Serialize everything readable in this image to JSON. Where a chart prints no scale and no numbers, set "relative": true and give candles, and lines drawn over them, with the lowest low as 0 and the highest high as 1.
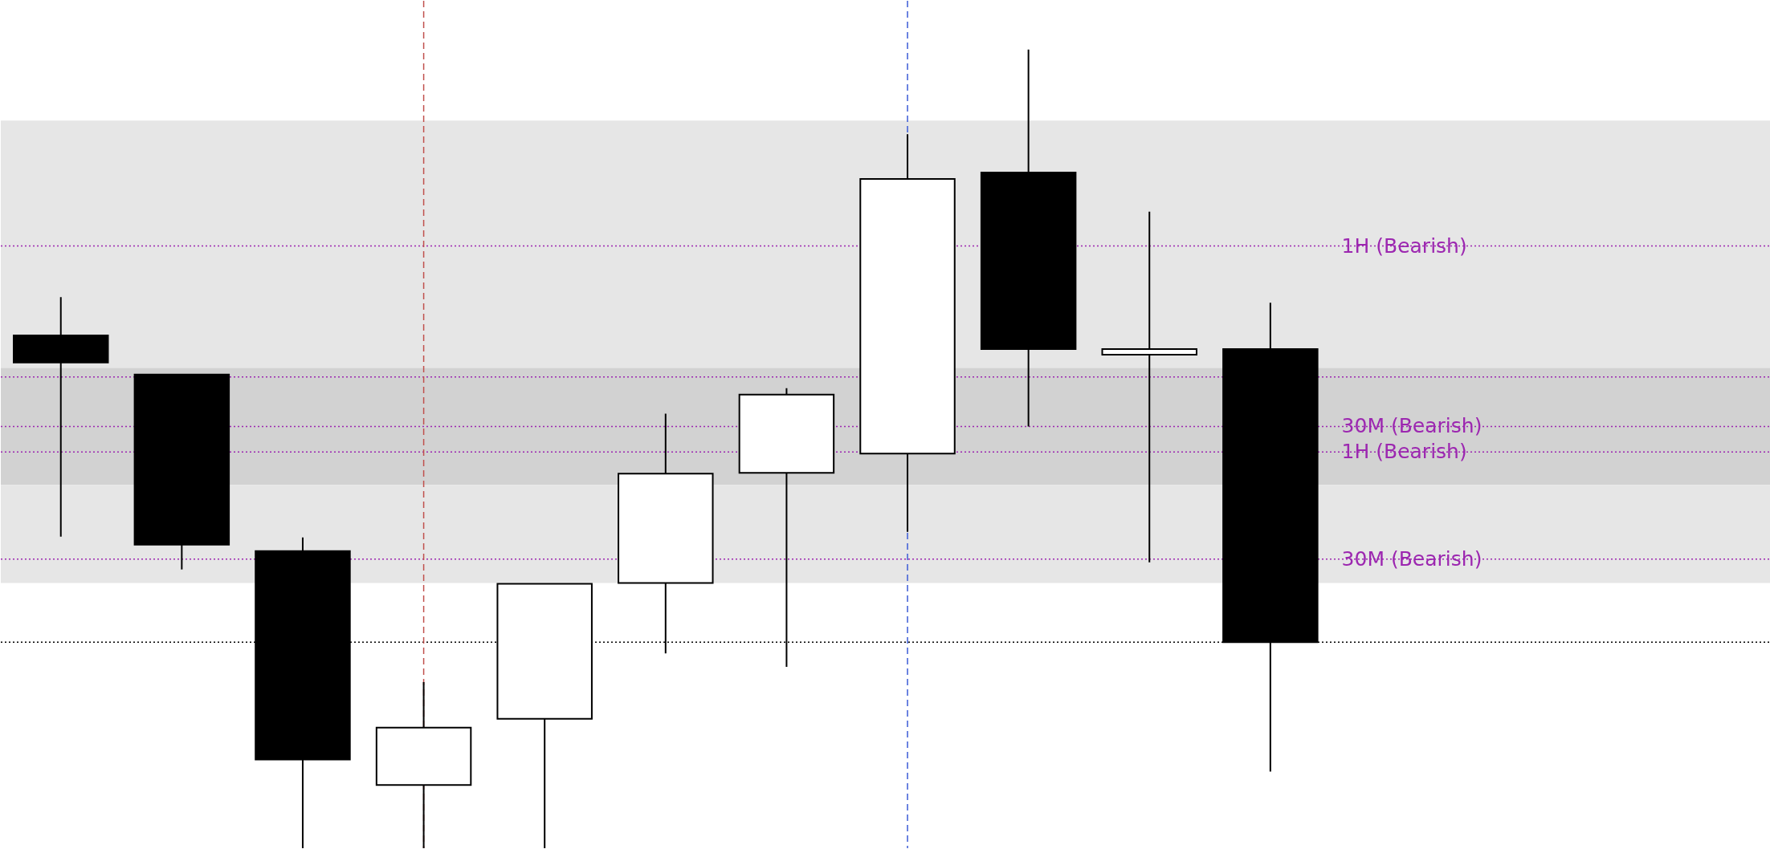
{
  "chart_data": {
    "type": "candlestick",
    "relative": true,
    "categories": [
      null,
      null,
      null,
      null,
      null,
      null,
      null,
      null,
      null,
      null,
      null
    ],
    "ohlc": [
      [
        0.642,
        0.69,
        0.39,
        0.608
      ],
      [
        0.593,
        0.593,
        0.349,
        0.38
      ],
      [
        0.372,
        0.389,
        0,
        0.111
      ],
      [
        0.079,
        0.208,
        0,
        0.151
      ],
      [
        0.162,
        0.331,
        0,
        0.331
      ],
      [
        0.332,
        0.544,
        0.244,
        0.469
      ],
      [
        0.47,
        0.576,
        0.227,
        0.568
      ],
      [
        0.494,
        0.894,
        0.396,
        0.838
      ],
      [
        0.846,
        1,
        0.528,
        0.625
      ],
      [
        0.618,
        0.797,
        0.358,
        0.625
      ],
      [
        0.625,
        0.683,
        0.096,
        0.258
      ]
    ],
    "colors": [
      "#000000",
      "#000000",
      "#000000",
      "#ffffff",
      "#ffffff",
      "#ffffff",
      "#ffffff",
      "#ffffff",
      "#000000",
      "#ffffff",
      "#000000"
    ],
    "bands": [
      {
        "axis": "y",
        "from": 0.594,
        "to": 0.911,
        "color": "#e6e6e6"
      },
      {
        "axis": "y",
        "from": 0.455,
        "to": 0.601,
        "color": "#d2d2d2"
      },
      {
        "axis": "y",
        "from": 0.332,
        "to": 0.455,
        "color": "#e6e6e6"
      }
    ],
    "ref_lines": [
      {
        "axis": "y",
        "value": 0.754,
        "label": "1H (Bearish)",
        "color": "#9c27b0",
        "line_style": "dotted"
      },
      {
        "axis": "y",
        "value": 0.59,
        "color": "#9c27b0",
        "line_style": "dotted"
      },
      {
        "axis": "y",
        "value": 0.528,
        "label": "30M (Bearish)",
        "color": "#9c27b0",
        "line_style": "dotted"
      },
      {
        "axis": "y",
        "value": 0.496,
        "label": "1H (Bearish)",
        "color": "#9c27b0",
        "line_style": "dotted"
      },
      {
        "axis": "y",
        "value": 0.362,
        "label": "30M (Bearish)",
        "color": "#9c27b0",
        "line_style": "dotted"
      },
      {
        "axis": "y",
        "value": 0.258,
        "color": "#000000",
        "line_style": "dotted"
      }
    ]
  }
}
